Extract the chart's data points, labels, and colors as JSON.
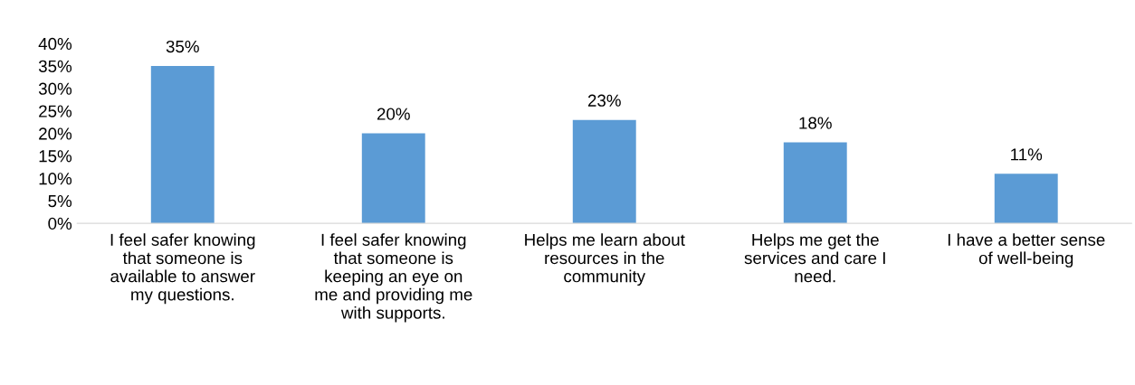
{
  "chart_data": {
    "type": "bar",
    "categories": [
      "I feel safer knowing\nthat someone is\navailable to answer\nmy questions.",
      "I feel safer knowing\nthat someone is\nkeeping an eye on\nme and providing me\nwith supports.",
      "Helps me learn about\nresources in the\ncommunity",
      "Helps me get the\nservices and care I\nneed.",
      "I have a better sense\nof well-being"
    ],
    "values": [
      35,
      20,
      23,
      18,
      11
    ],
    "color": "#5b9bd5",
    "value_labels": [
      "35%",
      "20%",
      "23%",
      "18%",
      "11%"
    ],
    "ylim": [
      0,
      40
    ],
    "yticks": [
      {
        "value": 0,
        "label": "0%"
      },
      {
        "value": 5,
        "label": "5%"
      },
      {
        "value": 10,
        "label": "10%"
      },
      {
        "value": 15,
        "label": "15%"
      },
      {
        "value": 20,
        "label": "20%"
      },
      {
        "value": 25,
        "label": "25%"
      },
      {
        "value": 30,
        "label": "30%"
      },
      {
        "value": 35,
        "label": "35%"
      },
      {
        "value": 40,
        "label": "40%"
      }
    ],
    "grid": false,
    "legend": false
  }
}
